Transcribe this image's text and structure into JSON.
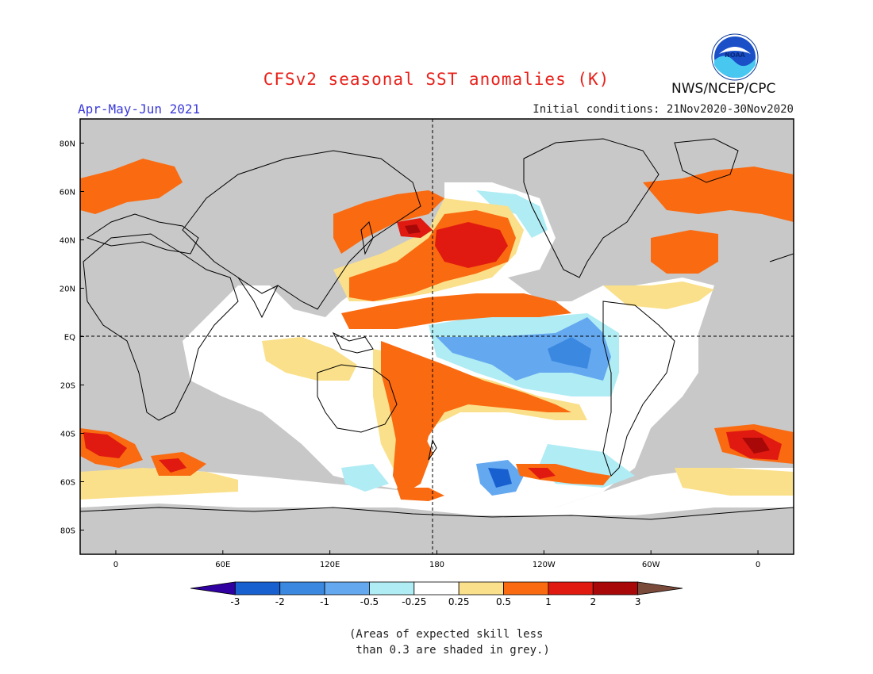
{
  "header": {
    "title": "CFSv2 seasonal SST anomalies (K)",
    "season": "Apr-May-Jun 2021",
    "initial_conditions": "Initial conditions: 21Nov2020-30Nov2020",
    "org": "NWS/NCEP/CPC",
    "logo_text": "NOAA"
  },
  "map": {
    "lat_labels": [
      "80N",
      "60N",
      "40N",
      "20N",
      "EQ",
      "20S",
      "40S",
      "60S",
      "80S"
    ],
    "lat_values": [
      80,
      60,
      40,
      20,
      0,
      -20,
      -40,
      -60,
      -80
    ],
    "lon_labels": [
      "0",
      "60E",
      "120E",
      "180",
      "120W",
      "60W",
      "0"
    ],
    "lon_values": [
      0,
      60,
      120,
      180,
      240,
      300,
      360
    ],
    "lon_range": [
      -20,
      380
    ],
    "lat_range": [
      -90,
      90
    ],
    "grey_shading": "#c8c8c8",
    "land_outline": "#000000"
  },
  "colorbar": {
    "ticks": [
      "-3",
      "-2",
      "-1",
      "-0.5",
      "-0.25",
      "0.25",
      "0.5",
      "1",
      "2",
      "3"
    ],
    "colors": [
      "#3000a0",
      "#1860d0",
      "#3a88e0",
      "#64a8f0",
      "#b0ecf4",
      "#ffffff",
      "#fae08a",
      "#fa6a10",
      "#e01a10",
      "#a80808",
      "#7a4a3a"
    ]
  },
  "footnote": "(Areas of expected skill less\n than 0.3 are shaded in grey.)"
}
